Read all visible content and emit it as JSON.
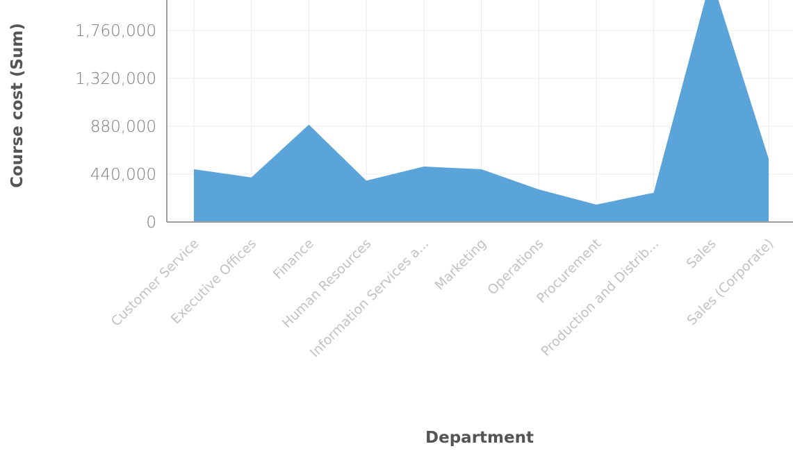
{
  "chart_data": {
    "type": "area",
    "title": "",
    "xlabel": "Department",
    "ylabel": "Course cost (Sum)",
    "categories": [
      "Customer Service",
      "Executive Offices",
      "Finance",
      "Human Resources",
      "Information Services a...",
      "Marketing",
      "Operations",
      "Procurement",
      "Production and Distrib...",
      "Sales",
      "Sales (Corporate)"
    ],
    "series": [
      {
        "values": [
          485000,
          410000,
          895000,
          380000,
          510000,
          485000,
          300000,
          160000,
          270000,
          2250000,
          580000
        ]
      }
    ],
    "y_ticks": [
      0,
      440000,
      880000,
      1320000,
      1760000
    ],
    "y_tick_labels": [
      "0",
      "440,000",
      "880,000",
      "1,320,000",
      "1,760,000"
    ],
    "ylim": [
      0,
      2000000
    ],
    "grid": true,
    "legend": "none",
    "colors": {
      "area": "#5aa4d9",
      "grid": "#ebebeb",
      "axis": "#9e9e9e"
    }
  }
}
